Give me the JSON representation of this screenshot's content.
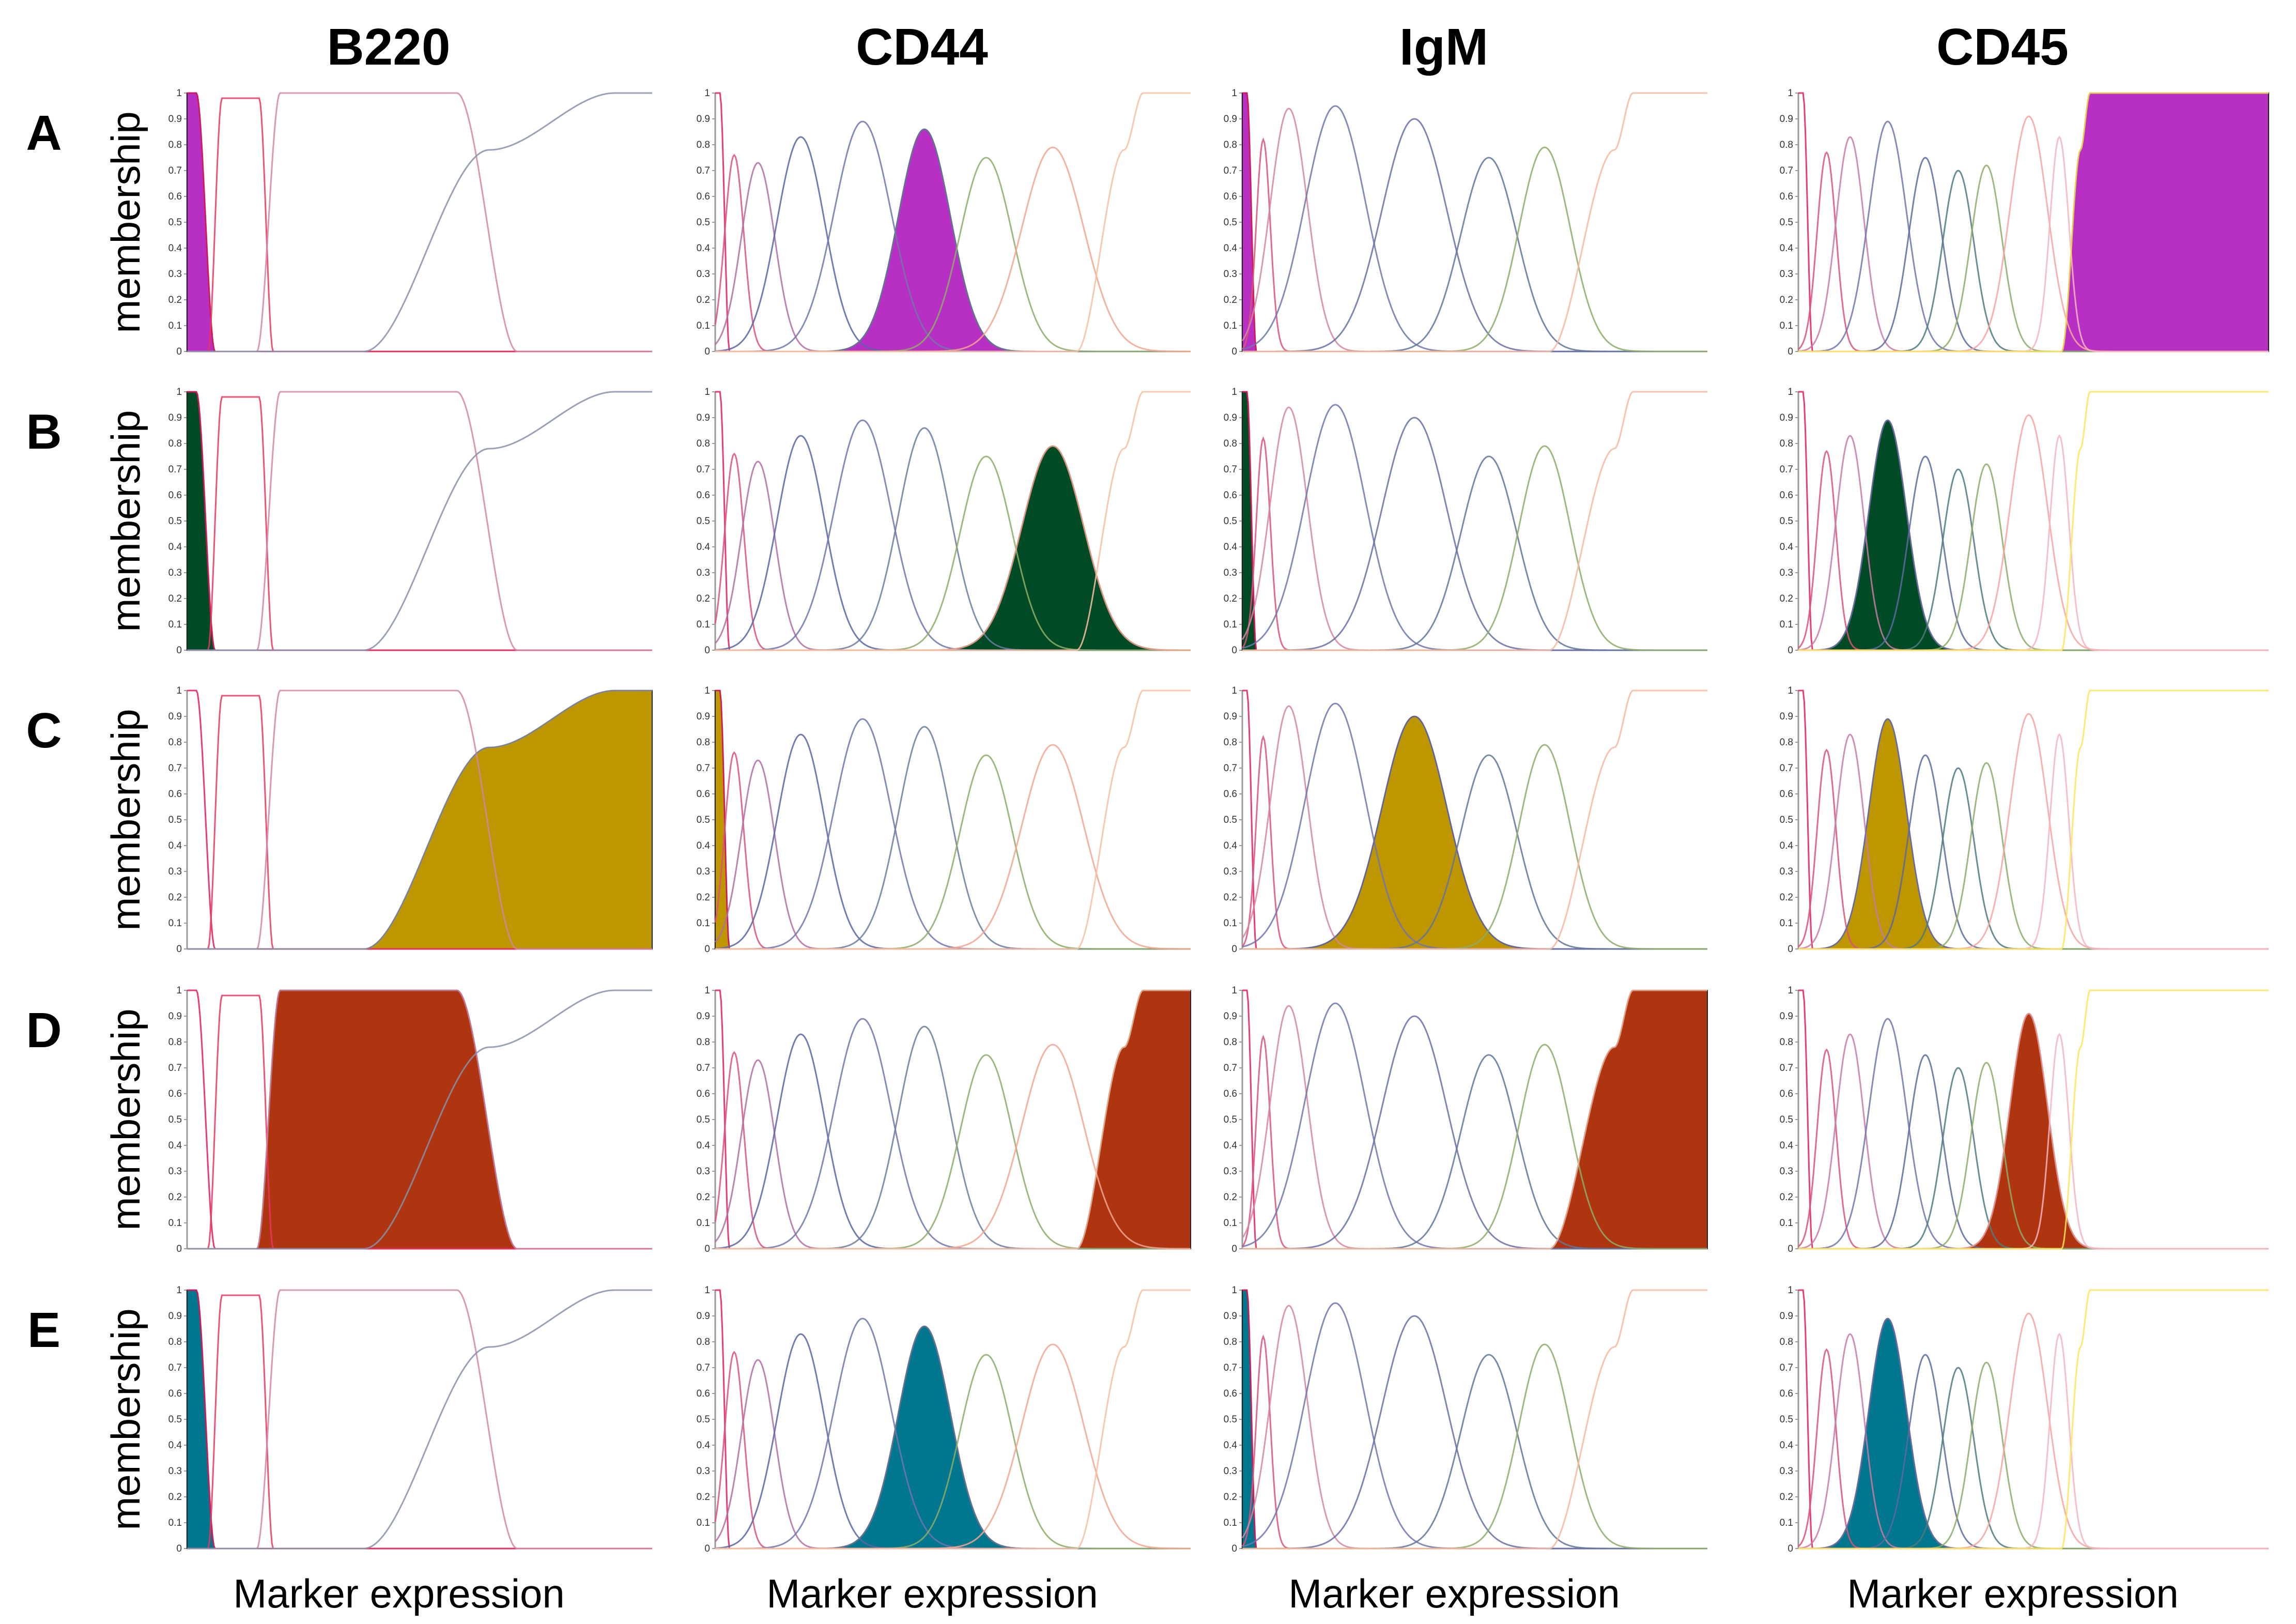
{
  "chart_data": {
    "type": "area",
    "description_text": "",
    "columns": [
      {
        "key": "B220",
        "title": "B220",
        "xlabel": "Marker expression",
        "sets": [
          {
            "name": "mf1",
            "color": "#e5195e",
            "shape": "shoulder",
            "center": 0.02,
            "width": 0.04,
            "peak": 1.0
          },
          {
            "name": "mf2",
            "color": "#e8355f",
            "shape": "plateau",
            "left": 0.075,
            "right": 0.155,
            "rise": 0.03,
            "fall": 0.03,
            "peak": 0.98
          },
          {
            "name": "mf3",
            "color": "#d486a3",
            "shape": "plateau",
            "left": 0.2,
            "right": 0.58,
            "rise": 0.05,
            "fall": 0.13,
            "peak": 1.0
          },
          {
            "name": "mf4",
            "color": "#888fa8",
            "shape": "rise",
            "start": 0.38,
            "knee": 0.65,
            "end": 0.92,
            "peak": 1.0
          }
        ]
      },
      {
        "key": "CD44",
        "title": "CD44",
        "xlabel": "Marker expression",
        "sets": [
          {
            "name": "mf1",
            "color": "#e5195e",
            "shape": "shoulder",
            "center": 0.01,
            "width": 0.02,
            "peak": 1.0
          },
          {
            "name": "mf2",
            "color": "#d9527a",
            "shape": "bell",
            "center": 0.04,
            "width": 0.02,
            "peak": 0.76
          },
          {
            "name": "mf3",
            "color": "#b06fa2",
            "shape": "bell",
            "center": 0.09,
            "width": 0.035,
            "peak": 0.73
          },
          {
            "name": "mf4",
            "color": "#5a65a3",
            "shape": "bell",
            "center": 0.18,
            "width": 0.05,
            "peak": 0.83
          },
          {
            "name": "mf5",
            "color": "#7176ab",
            "shape": "bell",
            "center": 0.31,
            "width": 0.06,
            "peak": 0.89
          },
          {
            "name": "mf6",
            "color": "#6d7d9e",
            "shape": "bell",
            "center": 0.44,
            "width": 0.055,
            "peak": 0.86
          },
          {
            "name": "mf7",
            "color": "#8eab6a",
            "shape": "bell",
            "center": 0.57,
            "width": 0.055,
            "peak": 0.75
          },
          {
            "name": "mf8",
            "color": "#f2a58f",
            "shape": "bell",
            "center": 0.71,
            "width": 0.065,
            "peak": 0.79
          },
          {
            "name": "mf9",
            "color": "#f7c0a3",
            "shape": "rise",
            "start": 0.76,
            "knee": 0.86,
            "end": 0.9,
            "peak": 1.0
          }
        ]
      },
      {
        "key": "IgM",
        "title": "IgM",
        "xlabel": "Marker expression",
        "sets": [
          {
            "name": "mf1",
            "color": "#e5195e",
            "shape": "shoulder",
            "center": 0.01,
            "width": 0.02,
            "peak": 1.0
          },
          {
            "name": "mf2",
            "color": "#d9527a",
            "shape": "bell",
            "center": 0.045,
            "width": 0.015,
            "peak": 0.82
          },
          {
            "name": "mf3",
            "color": "#d486a3",
            "shape": "bell",
            "center": 0.1,
            "width": 0.04,
            "peak": 0.94
          },
          {
            "name": "mf4",
            "color": "#7176ab",
            "shape": "bell",
            "center": 0.2,
            "width": 0.065,
            "peak": 0.95
          },
          {
            "name": "mf5",
            "color": "#6a6fa6",
            "shape": "bell",
            "center": 0.37,
            "width": 0.07,
            "peak": 0.9
          },
          {
            "name": "mf6",
            "color": "#62759a",
            "shape": "bell",
            "center": 0.53,
            "width": 0.06,
            "peak": 0.75
          },
          {
            "name": "mf7",
            "color": "#8eab6a",
            "shape": "bell",
            "center": 0.65,
            "width": 0.055,
            "peak": 0.79
          },
          {
            "name": "mf8",
            "color": "#f7b8a0",
            "shape": "rise",
            "start": 0.66,
            "knee": 0.8,
            "end": 0.84,
            "peak": 1.0
          }
        ]
      },
      {
        "key": "CD45",
        "title": "CD45",
        "xlabel": "Marker expression",
        "sets": [
          {
            "name": "mf1",
            "color": "#e5195e",
            "shape": "shoulder",
            "center": 0.01,
            "width": 0.02,
            "peak": 1.0
          },
          {
            "name": "mf2",
            "color": "#d9527a",
            "shape": "bell",
            "center": 0.06,
            "width": 0.02,
            "peak": 0.77
          },
          {
            "name": "mf3",
            "color": "#c77ba6",
            "shape": "bell",
            "center": 0.11,
            "width": 0.03,
            "peak": 0.83
          },
          {
            "name": "mf4",
            "color": "#7176ab",
            "shape": "bell",
            "center": 0.19,
            "width": 0.04,
            "peak": 0.89
          },
          {
            "name": "mf5",
            "color": "#5d6a9c",
            "shape": "bell",
            "center": 0.27,
            "width": 0.035,
            "peak": 0.75
          },
          {
            "name": "mf6",
            "color": "#4d7a7e",
            "shape": "bell",
            "center": 0.34,
            "width": 0.033,
            "peak": 0.7
          },
          {
            "name": "mf7",
            "color": "#8eab6a",
            "shape": "bell",
            "center": 0.4,
            "width": 0.033,
            "peak": 0.72
          },
          {
            "name": "mf8",
            "color": "#f7a3a0",
            "shape": "bell",
            "center": 0.49,
            "width": 0.04,
            "peak": 0.91
          },
          {
            "name": "mf9",
            "color": "#f5b4c0",
            "shape": "bell",
            "center": 0.555,
            "width": 0.02,
            "peak": 0.83
          },
          {
            "name": "mf10",
            "color": "#ffe45c",
            "shape": "rise",
            "start": 0.56,
            "knee": 0.6,
            "end": 0.62,
            "peak": 1.0
          }
        ]
      }
    ],
    "rows": [
      {
        "label": "A",
        "fill": "#b82fc4",
        "ylabel": "membership",
        "highlight": [
          "mf1",
          "mf6",
          "mf1",
          "mf10"
        ]
      },
      {
        "label": "B",
        "fill": "#004a25",
        "ylabel": "membership",
        "highlight": [
          "mf1",
          "mf8",
          "mf1",
          "mf4"
        ]
      },
      {
        "label": "C",
        "fill": "#be9600",
        "ylabel": "membership",
        "highlight": [
          "mf4",
          "mf1",
          "mf5",
          "mf4"
        ]
      },
      {
        "label": "D",
        "fill": "#ae350f",
        "ylabel": "membership",
        "highlight": [
          "mf3",
          "mf9",
          "mf8",
          "mf8"
        ]
      },
      {
        "label": "E",
        "fill": "#00768f",
        "ylabel": "membership",
        "highlight": [
          "mf1",
          "mf6",
          "mf1",
          "mf4"
        ]
      }
    ],
    "y_ticks": [
      "0",
      "0.1",
      "0.2",
      "0.3",
      "0.4",
      "0.5",
      "0.6",
      "0.7",
      "0.8",
      "0.9",
      "1"
    ],
    "ylim": [
      0,
      1
    ],
    "xlim": [
      0,
      1
    ]
  }
}
